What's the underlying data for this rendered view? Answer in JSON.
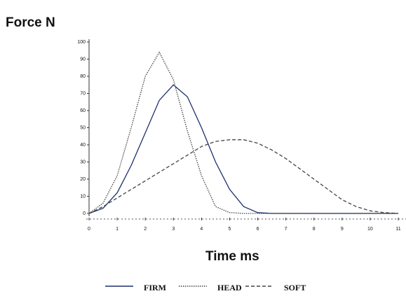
{
  "chart_data": {
    "type": "line",
    "title": "Force N",
    "x_label": "Time ms",
    "x": [
      0,
      0.5,
      1,
      1.5,
      2,
      2.5,
      3,
      3.5,
      4,
      4.5,
      5,
      5.5,
      6,
      6.5,
      7,
      7.5,
      8,
      8.5,
      9,
      9.5,
      10,
      10.5,
      11
    ],
    "series": [
      {
        "name": "FIRM",
        "color": "#1f2f6e",
        "dash": "solid",
        "values": [
          0,
          3,
          12,
          28,
          47,
          66,
          75,
          68,
          50,
          30,
          14,
          4,
          0.5,
          0,
          0,
          0,
          0,
          0,
          0,
          0,
          0,
          0,
          0
        ]
      },
      {
        "name": "HEAD",
        "color": "#444444",
        "dash": "dotted",
        "values": [
          0,
          6,
          22,
          50,
          80,
          94,
          78,
          48,
          22,
          4,
          0.5,
          0,
          0,
          0,
          0,
          0,
          0,
          0,
          0,
          0,
          0,
          0,
          0
        ]
      },
      {
        "name": "SOFT",
        "color": "#444444",
        "dash": "dashed",
        "values": [
          0,
          4,
          9,
          14,
          19,
          24,
          29,
          34,
          39,
          42,
          43,
          43,
          41,
          37,
          32,
          26,
          20,
          14,
          8,
          4,
          1.5,
          0.5,
          0
        ]
      }
    ],
    "xlim": [
      0,
      11
    ],
    "xticks": [
      0,
      1,
      2,
      3,
      4,
      5,
      6,
      7,
      8,
      9,
      10,
      11
    ],
    "ylim": [
      0,
      100
    ],
    "yticks": [
      0,
      10,
      20,
      30,
      40,
      50,
      60,
      70,
      80,
      90,
      100
    ],
    "grid": false,
    "legend": "bottom"
  }
}
